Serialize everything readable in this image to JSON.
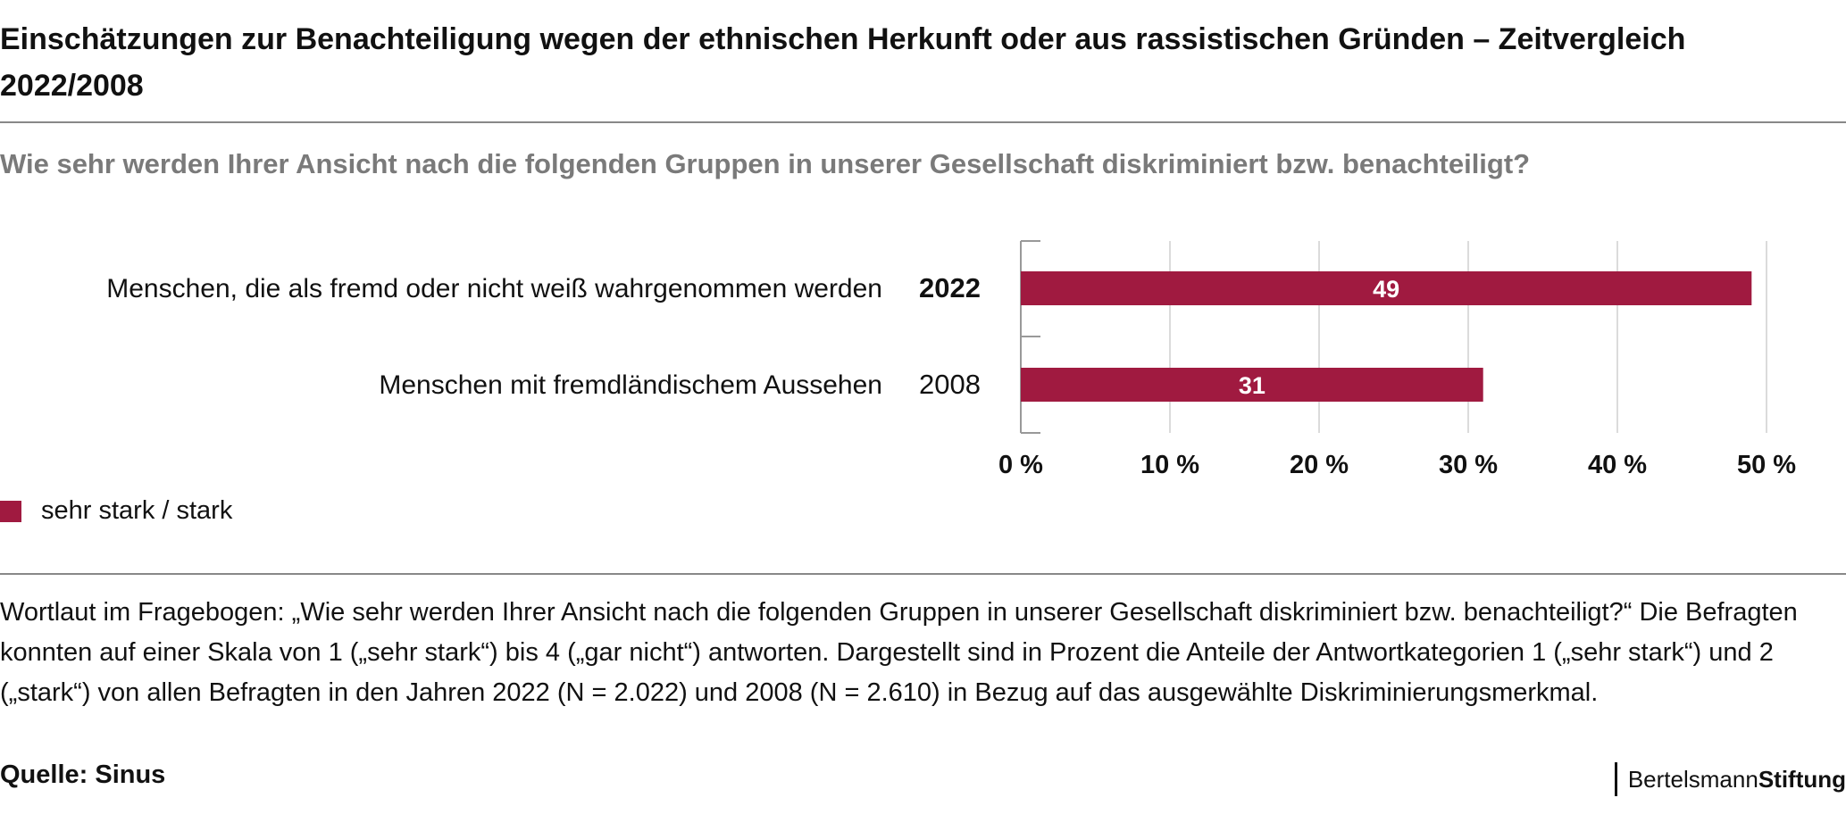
{
  "title": "Einschätzungen zur Benachteiligung wegen der ethnischen Herkunft oder aus rassistischen Gründen – Zeitvergleich 2022/2008",
  "subtitle": "Wie sehr werden Ihrer Ansicht nach die folgenden Gruppen in unserer Gesellschaft diskriminiert bzw. benachteiligt?",
  "colors": {
    "bar": "#a01a40",
    "grid": "#cfcfcf",
    "axis": "#999999"
  },
  "chart_data": {
    "type": "bar",
    "orientation": "horizontal",
    "categories": [
      "Menschen, die als fremd oder nicht weiß wahrgenommen werden",
      "Menschen mit fremdländischem Aussehen"
    ],
    "years": [
      "2022",
      "2008"
    ],
    "year_bold": [
      true,
      false
    ],
    "series": [
      {
        "name": "sehr stark / stark",
        "values": [
          49,
          31
        ]
      }
    ],
    "data_labels": [
      "49",
      "31"
    ],
    "xlim": [
      0,
      50
    ],
    "xticks": [
      0,
      10,
      20,
      30,
      40,
      50
    ],
    "xtick_labels": [
      "0 %",
      "10 %",
      "20 %",
      "30 %",
      "40 %",
      "50 %"
    ],
    "grid": true,
    "legend_position": "bottom-left"
  },
  "legend": {
    "label": "sehr stark / stark"
  },
  "footnote": "Wortlaut im Fragebogen: „Wie sehr werden Ihrer Ansicht nach die folgenden Gruppen in unserer Gesellschaft diskriminiert bzw. benachteiligt?“ Die Befragten konnten auf einer Skala von 1 („sehr stark“) bis 4 („gar nicht“) antworten. Dargestellt sind in Prozent die Anteile der Antwortkategorien 1 („sehr stark“) und 2 („stark“) von allen Befragten in den Jahren 2022 (N = 2.022) und 2008 (N = 2.610) in Bezug auf das ausgewählte Diskriminierungsmerkmal.",
  "source": "Quelle: Sinus",
  "brand": {
    "light": "Bertelsmann",
    "bold": "Stiftung"
  }
}
